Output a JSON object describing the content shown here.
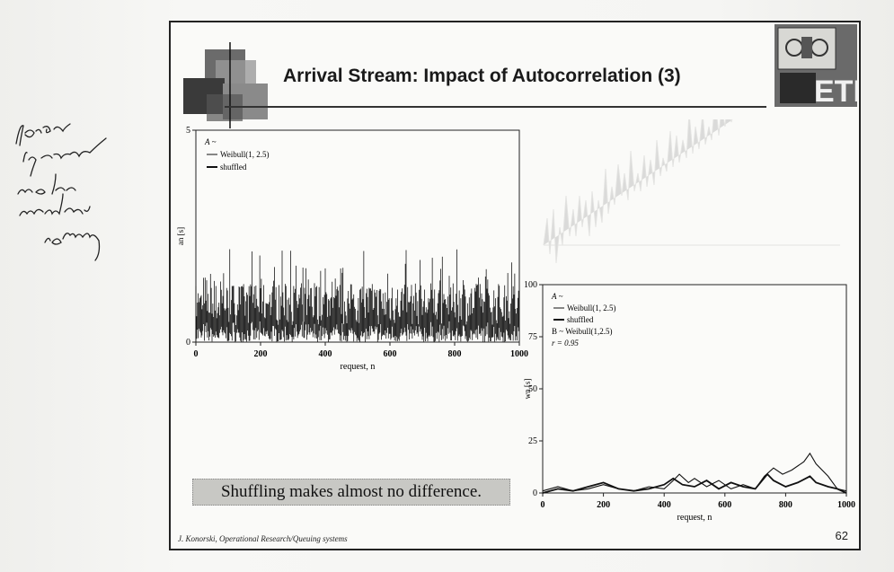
{
  "slide": {
    "title": "Arrival Stream: Impact of Autocorrelation (3)",
    "caption": "Shuffling makes almost no difference.",
    "footer": "J. Konorski, Operational Research/Queuing systems",
    "page_number": "62",
    "logo_text": "ETI"
  },
  "handwritten_note": {
    "lines": [
      "potesen",
      "ls pypadkw",
      "lwe bee",
      "cwalneg'",
      "rezinicy"
    ]
  },
  "chart_data": [
    {
      "type": "line",
      "legend_lines": [
        "A ~",
        "Weibull(1, 2.5)",
        "shuffled"
      ],
      "ylabel": "an [s]",
      "xlabel": "request, n",
      "xlim": [
        0,
        1000
      ],
      "ylim": [
        0,
        5
      ],
      "xticks": [
        "0",
        "200",
        "400",
        "600",
        "800",
        "1000"
      ],
      "yticks": [
        "0",
        "5"
      ],
      "series": [
        {
          "name": "Weibull(1, 2.5)",
          "values_summary": "mean ~0.9, noisy between 0 and ~2.5"
        },
        {
          "name": "shuffled",
          "values_summary": "mean ~0.9, noisy between 0 and ~2.5"
        }
      ]
    },
    {
      "type": "line",
      "legend_lines": [
        "A ~",
        "Weibull(1, 2.5)",
        "shuffled",
        "B ~ Weibull(1,2.5)",
        "r = 0.95"
      ],
      "ylabel": "wn [s]",
      "xlabel": "request, n",
      "xlim": [
        0,
        1000
      ],
      "ylim": [
        0,
        100
      ],
      "xticks": [
        "0",
        "200",
        "400",
        "600",
        "800",
        "1000"
      ],
      "yticks": [
        "0",
        "25",
        "50",
        "75",
        "100"
      ],
      "series": [
        {
          "name": "Weibull(1, 2.5)",
          "x": [
            0,
            50,
            100,
            150,
            200,
            250,
            300,
            350,
            400,
            430,
            450,
            480,
            500,
            540,
            580,
            620,
            660,
            700,
            730,
            760,
            790,
            820,
            860,
            880,
            900,
            940,
            970,
            1000
          ],
          "y": [
            1,
            3,
            1,
            2,
            4,
            2,
            1,
            3,
            2,
            6,
            9,
            5,
            7,
            3,
            6,
            2,
            4,
            2,
            8,
            12,
            9,
            11,
            15,
            19,
            14,
            8,
            2,
            1
          ]
        },
        {
          "name": "shuffled",
          "x": [
            0,
            50,
            100,
            150,
            200,
            250,
            300,
            350,
            400,
            430,
            460,
            500,
            540,
            580,
            620,
            660,
            700,
            740,
            760,
            800,
            840,
            880,
            900,
            940,
            970,
            1000
          ],
          "y": [
            0,
            2,
            1,
            3,
            5,
            2,
            1,
            2,
            4,
            7,
            4,
            3,
            6,
            2,
            5,
            3,
            2,
            9,
            6,
            3,
            5,
            8,
            5,
            3,
            2,
            0
          ]
        }
      ]
    }
  ]
}
